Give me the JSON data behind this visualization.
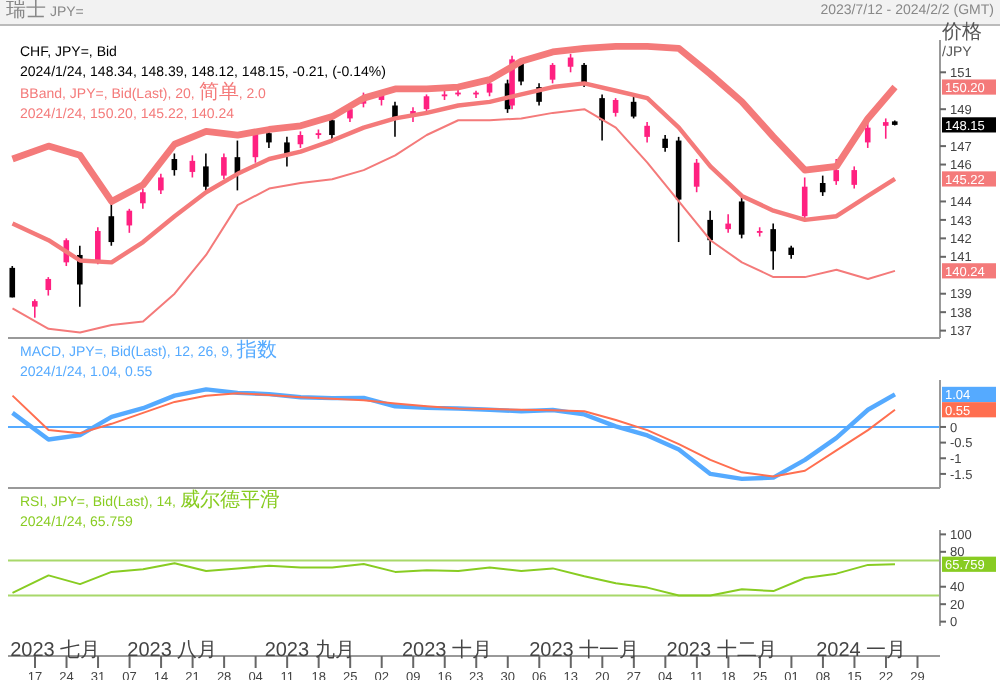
{
  "chart_data": [
    {
      "type": "candlestick",
      "title": "瑞士 JPY=",
      "subtitle": "2023/7/12 - 2024/2/2 (GMT)",
      "ylabel": "价格 /JPY",
      "x": [
        "2023-07-12",
        "2023-07-17",
        "2023-07-20",
        "2023-07-24",
        "2023-07-27",
        "2023-07-31",
        "2023-08-03",
        "2023-08-07",
        "2023-08-10",
        "2023-08-14",
        "2023-08-17",
        "2023-08-21",
        "2023-08-24",
        "2023-08-28",
        "2023-08-31",
        "2023-09-04",
        "2023-09-07",
        "2023-09-11",
        "2023-09-14",
        "2023-09-18",
        "2023-09-21",
        "2023-09-25",
        "2023-09-28",
        "2023-10-02",
        "2023-10-05",
        "2023-10-09",
        "2023-10-12",
        "2023-10-16",
        "2023-10-19",
        "2023-10-23",
        "2023-10-26",
        "2023-10-30",
        "2023-10-31",
        "2023-11-02",
        "2023-11-06",
        "2023-11-09",
        "2023-11-13",
        "2023-11-16",
        "2023-11-20",
        "2023-11-23",
        "2023-11-27",
        "2023-11-30",
        "2023-12-04",
        "2023-12-07",
        "2023-12-11",
        "2023-12-14",
        "2023-12-18",
        "2023-12-21",
        "2023-12-25",
        "2023-12-28",
        "2024-01-01",
        "2024-01-04",
        "2024-01-08",
        "2024-01-11",
        "2024-01-15",
        "2024-01-18",
        "2024-01-22",
        "2024-01-24"
      ],
      "ohlc": [
        [
          140.4,
          140.5,
          138.8,
          138.8
        ],
        [
          138.3,
          138.7,
          137.7,
          138.6
        ],
        [
          139.2,
          139.9,
          138.9,
          139.8
        ],
        [
          140.7,
          142.0,
          140.5,
          141.9
        ],
        [
          141.1,
          141.6,
          138.3,
          139.5
        ],
        [
          140.8,
          142.6,
          140.6,
          142.4
        ],
        [
          143.2,
          144.0,
          141.6,
          141.8
        ],
        [
          142.7,
          143.6,
          142.3,
          143.5
        ],
        [
          143.9,
          144.7,
          143.6,
          144.5
        ],
        [
          144.6,
          145.5,
          144.4,
          145.3
        ],
        [
          146.3,
          146.6,
          145.4,
          145.7
        ],
        [
          145.6,
          146.5,
          145.3,
          146.2
        ],
        [
          145.9,
          146.6,
          144.5,
          144.8
        ],
        [
          145.4,
          146.6,
          145.2,
          146.4
        ],
        [
          146.4,
          147.3,
          144.6,
          145.5
        ],
        [
          146.4,
          147.9,
          146.1,
          147.7
        ],
        [
          147.7,
          147.8,
          146.9,
          147.2
        ],
        [
          147.2,
          147.5,
          145.9,
          146.5
        ],
        [
          147.1,
          147.8,
          146.9,
          147.6
        ],
        [
          147.6,
          147.9,
          147.4,
          147.7
        ],
        [
          148.4,
          148.6,
          147.3,
          147.6
        ],
        [
          148.5,
          149.2,
          148.3,
          149.0
        ],
        [
          149.3,
          149.9,
          149.1,
          149.6
        ],
        [
          149.5,
          150.0,
          149.2,
          149.8
        ],
        [
          149.2,
          149.4,
          147.5,
          148.5
        ],
        [
          148.6,
          149.1,
          148.3,
          148.9
        ],
        [
          149.0,
          149.8,
          148.8,
          149.7
        ],
        [
          149.7,
          150.0,
          149.5,
          149.8
        ],
        [
          149.8,
          150.1,
          149.7,
          149.9
        ],
        [
          149.8,
          150.0,
          149.6,
          149.9
        ],
        [
          149.9,
          150.5,
          149.7,
          150.4
        ],
        [
          150.4,
          150.6,
          148.8,
          149.0
        ],
        [
          149.2,
          151.9,
          149.0,
          151.7
        ],
        [
          151.5,
          151.7,
          150.3,
          150.5
        ],
        [
          150.2,
          150.4,
          149.2,
          149.4
        ],
        [
          150.6,
          151.5,
          150.4,
          151.4
        ],
        [
          151.3,
          152.0,
          151.0,
          151.8
        ],
        [
          151.4,
          151.5,
          150.2,
          150.4
        ],
        [
          149.6,
          149.8,
          147.3,
          148.4
        ],
        [
          148.8,
          149.6,
          148.6,
          149.5
        ],
        [
          149.4,
          149.7,
          148.5,
          148.6
        ],
        [
          147.5,
          148.3,
          147.2,
          148.1
        ],
        [
          147.4,
          147.6,
          146.7,
          146.9
        ],
        [
          147.3,
          147.5,
          141.8,
          144.1
        ],
        [
          144.8,
          146.3,
          144.5,
          146.1
        ],
        [
          143.0,
          143.5,
          141.1,
          141.9
        ],
        [
          142.5,
          143.3,
          142.3,
          142.8
        ],
        [
          144.0,
          144.3,
          142.0,
          142.2
        ],
        [
          142.3,
          142.6,
          142.1,
          142.4
        ],
        [
          142.5,
          142.8,
          140.3,
          141.3
        ],
        [
          141.5,
          141.6,
          140.9,
          141.1
        ],
        [
          143.2,
          145.3,
          143.0,
          144.8
        ],
        [
          145.0,
          145.4,
          144.3,
          144.5
        ],
        [
          145.1,
          146.3,
          144.9,
          145.7
        ],
        [
          144.9,
          145.9,
          144.7,
          145.7
        ],
        [
          147.2,
          148.3,
          146.9,
          148.0
        ],
        [
          148.1,
          148.5,
          147.4,
          148.3
        ],
        [
          148.34,
          148.39,
          148.12,
          148.15
        ]
      ],
      "colors": [
        "#000000",
        "#ff2080",
        "#ff2080",
        "#ff2080",
        "#000000",
        "#ff2080",
        "#000000",
        "#ff2080",
        "#ff2080",
        "#ff2080",
        "#000000",
        "#ff2080",
        "#000000",
        "#ff2080",
        "#000000",
        "#ff2080",
        "#000000",
        "#000000",
        "#ff2080",
        "#ff2080",
        "#000000",
        "#ff2080",
        "#ff2080",
        "#ff2080",
        "#000000",
        "#ff2080",
        "#ff2080",
        "#ff2080",
        "#ff2080",
        "#ff2080",
        "#ff2080",
        "#000000",
        "#ff2080",
        "#000000",
        "#000000",
        "#ff2080",
        "#ff2080",
        "#000000",
        "#000000",
        "#ff2080",
        "#000000",
        "#ff2080",
        "#000000",
        "#000000",
        "#ff2080",
        "#000000",
        "#ff2080",
        "#000000",
        "#ff2080",
        "#000000",
        "#000000",
        "#ff2080",
        "#000000",
        "#ff2080",
        "#ff2080",
        "#ff2080",
        "#ff2080",
        "#000000"
      ],
      "series": [
        {
          "type": "line",
          "color": "#f47a7a",
          "x": [
            "2023-07-12",
            "2023-07-20",
            "2023-07-27",
            "2023-08-03",
            "2023-08-10",
            "2023-08-17",
            "2023-08-24",
            "2023-08-31",
            "2023-09-07",
            "2023-09-14",
            "2023-09-21",
            "2023-09-28",
            "2023-10-05",
            "2023-10-12",
            "2023-10-19",
            "2023-10-26",
            "2023-11-02",
            "2023-11-09",
            "2023-11-16",
            "2023-11-23",
            "2023-11-30",
            "2023-12-07",
            "2023-12-14",
            "2023-12-21",
            "2023-12-28",
            "2024-01-04",
            "2024-01-11",
            "2024-01-18",
            "2024-01-24"
          ],
          "values": [
            146.3,
            147.0,
            146.5,
            144.0,
            144.9,
            147.1,
            147.8,
            147.6,
            147.9,
            148.1,
            148.6,
            149.6,
            150.1,
            150.1,
            150.2,
            150.6,
            151.6,
            152.1,
            152.3,
            152.4,
            152.4,
            152.3,
            150.9,
            149.4,
            147.5,
            145.7,
            145.9,
            148.5,
            150.2
          ]
        },
        {
          "type": "line",
          "color": "#f47a7a",
          "x": [
            "2023-07-12",
            "2023-07-20",
            "2023-07-27",
            "2023-08-03",
            "2023-08-10",
            "2023-08-17",
            "2023-08-24",
            "2023-08-31",
            "2023-09-07",
            "2023-09-14",
            "2023-09-21",
            "2023-09-28",
            "2023-10-05",
            "2023-10-12",
            "2023-10-19",
            "2023-10-26",
            "2023-11-02",
            "2023-11-09",
            "2023-11-16",
            "2023-11-23",
            "2023-11-30",
            "2023-12-07",
            "2023-12-14",
            "2023-12-21",
            "2023-12-28",
            "2024-01-04",
            "2024-01-11",
            "2024-01-18",
            "2024-01-24"
          ],
          "values": [
            142.8,
            141.9,
            140.8,
            140.7,
            141.8,
            143.2,
            144.5,
            145.5,
            146.3,
            146.7,
            147.3,
            148.0,
            148.5,
            148.8,
            149.2,
            149.4,
            149.8,
            150.2,
            150.4,
            150.0,
            149.6,
            148.0,
            145.9,
            144.3,
            143.5,
            143.0,
            143.2,
            144.3,
            145.22
          ]
        },
        {
          "type": "line",
          "color": "#f47a7a",
          "x": [
            "2023-07-12",
            "2023-07-20",
            "2023-07-27",
            "2023-08-03",
            "2023-08-10",
            "2023-08-17",
            "2023-08-24",
            "2023-08-31",
            "2023-09-07",
            "2023-09-14",
            "2023-09-21",
            "2023-09-28",
            "2023-10-05",
            "2023-10-12",
            "2023-10-19",
            "2023-10-26",
            "2023-11-02",
            "2023-11-09",
            "2023-11-16",
            "2023-11-23",
            "2023-11-30",
            "2023-12-07",
            "2023-12-14",
            "2023-12-21",
            "2023-12-28",
            "2024-01-04",
            "2024-01-11",
            "2024-01-18",
            "2024-01-24"
          ],
          "values": [
            138.2,
            137.1,
            136.9,
            137.3,
            137.5,
            139.0,
            141.1,
            143.8,
            144.7,
            145.0,
            145.2,
            145.7,
            146.5,
            147.6,
            148.4,
            148.4,
            148.5,
            148.8,
            149.0,
            148.0,
            146.1,
            144.0,
            141.9,
            140.7,
            139.9,
            139.9,
            140.3,
            139.8,
            140.24
          ]
        }
      ],
      "xlim": [
        "2023-07-11",
        "2024-02-03"
      ],
      "ylim": [
        136.6,
        152.75
      ],
      "yticks": [
        137,
        138,
        139,
        141,
        142,
        143,
        144,
        146,
        147,
        149,
        151
      ],
      "tick_labels": "y",
      "annotations": [
        "CHF, JPY=, Bid",
        "2024/1/24, 148.34, 148.39, 148.12, 148.15, -0.21, (-0.14%)",
        "BBand, JPY=, Bid(Last), 20, 简单, 2.0",
        "2024/1/24, 150.20, 145.22, 140.24",
        "150.20",
        "148.15",
        "145.22",
        "140.24"
      ]
    },
    {
      "type": "line",
      "x": [
        "2023-07-12",
        "2023-07-20",
        "2023-07-27",
        "2023-08-03",
        "2023-08-10",
        "2023-08-17",
        "2023-08-24",
        "2023-08-31",
        "2023-09-07",
        "2023-09-14",
        "2023-09-21",
        "2023-09-28",
        "2023-10-05",
        "2023-10-12",
        "2023-10-19",
        "2023-10-26",
        "2023-11-02",
        "2023-11-09",
        "2023-11-16",
        "2023-11-23",
        "2023-11-30",
        "2023-12-07",
        "2023-12-14",
        "2023-12-21",
        "2023-12-28",
        "2024-01-04",
        "2024-01-11",
        "2024-01-18",
        "2024-01-24"
      ],
      "series": [
        {
          "color": "#55aaff",
          "values": [
            0.45,
            -0.4,
            -0.26,
            0.32,
            0.6,
            1.0,
            1.2,
            1.09,
            1.05,
            0.95,
            0.92,
            0.93,
            0.66,
            0.61,
            0.59,
            0.55,
            0.5,
            0.54,
            0.4,
            0.02,
            -0.27,
            -0.72,
            -1.5,
            -1.66,
            -1.62,
            -1.05,
            -0.35,
            0.55,
            1.04
          ]
        },
        {
          "color": "#ff6f50",
          "values": [
            1.0,
            -0.1,
            -0.2,
            0.1,
            0.45,
            0.8,
            1.0,
            1.08,
            1.02,
            0.95,
            0.9,
            0.85,
            0.75,
            0.66,
            0.59,
            0.57,
            0.55,
            0.53,
            0.5,
            0.22,
            -0.1,
            -0.55,
            -1.05,
            -1.45,
            -1.58,
            -1.4,
            -0.75,
            -0.1,
            0.55
          ]
        }
      ],
      "xlim": [
        "2023-07-11",
        "2024-02-03"
      ],
      "ylim": [
        -1.95,
        1.5
      ],
      "yticks": [
        -1.5,
        -1,
        -0.5,
        0
      ],
      "tick_labels": "y",
      "ref_lines": [
        {
          "axis": "y",
          "value": 0,
          "color": "#55aaff"
        }
      ],
      "annotations": [
        "MACD, JPY=, Bid(Last), 12, 26, 9, 指数",
        "2024/1/24, 1.04, 0.55",
        "1.04",
        "0.55"
      ]
    },
    {
      "type": "line",
      "x": [
        "2023-07-12",
        "2023-07-20",
        "2023-07-27",
        "2023-08-03",
        "2023-08-10",
        "2023-08-17",
        "2023-08-24",
        "2023-08-31",
        "2023-09-07",
        "2023-09-14",
        "2023-09-21",
        "2023-09-28",
        "2023-10-05",
        "2023-10-12",
        "2023-10-19",
        "2023-10-26",
        "2023-11-02",
        "2023-11-09",
        "2023-11-16",
        "2023-11-23",
        "2023-11-30",
        "2023-12-07",
        "2023-12-14",
        "2023-12-21",
        "2023-12-28",
        "2024-01-04",
        "2024-01-11",
        "2024-01-18",
        "2024-01-24"
      ],
      "series": [
        {
          "color": "#88cc22",
          "values": [
            33,
            53,
            43,
            57,
            60,
            67,
            58,
            61,
            64,
            62,
            62,
            66,
            57,
            59,
            58,
            62,
            58,
            61,
            52,
            44,
            39,
            30,
            30,
            37,
            35,
            50,
            55,
            65,
            65.759
          ]
        }
      ],
      "xlim": [
        "2023-07-11",
        "2024-02-03"
      ],
      "ylim": [
        -5,
        105
      ],
      "yticks": [
        0,
        20,
        40,
        80,
        100
      ],
      "xticks": [
        {
          "value": "2023-07-17",
          "label": "17"
        },
        {
          "value": "2023-07-24",
          "label": "24"
        },
        {
          "value": "2023-07-31",
          "label": "31"
        },
        {
          "value": "2023-08-07",
          "label": "07"
        },
        {
          "value": "2023-08-14",
          "label": "14"
        },
        {
          "value": "2023-08-21",
          "label": "21"
        },
        {
          "value": "2023-08-28",
          "label": "28"
        },
        {
          "value": "2023-09-04",
          "label": "04"
        },
        {
          "value": "2023-09-11",
          "label": "11"
        },
        {
          "value": "2023-09-18",
          "label": "18"
        },
        {
          "value": "2023-09-25",
          "label": "25"
        },
        {
          "value": "2023-10-02",
          "label": "02"
        },
        {
          "value": "2023-10-09",
          "label": "09"
        },
        {
          "value": "2023-10-16",
          "label": "16"
        },
        {
          "value": "2023-10-23",
          "label": "23"
        },
        {
          "value": "2023-10-30",
          "label": "30"
        },
        {
          "value": "2023-11-06",
          "label": "06"
        },
        {
          "value": "2023-11-13",
          "label": "13"
        },
        {
          "value": "2023-11-20",
          "label": "20"
        },
        {
          "value": "2023-11-27",
          "label": "27"
        },
        {
          "value": "2023-12-04",
          "label": "04"
        },
        {
          "value": "2023-12-11",
          "label": "11"
        },
        {
          "value": "2023-12-18",
          "label": "18"
        },
        {
          "value": "2023-12-25",
          "label": "25"
        },
        {
          "value": "2024-01-01",
          "label": "01"
        },
        {
          "value": "2024-01-08",
          "label": "08"
        },
        {
          "value": "2024-01-15",
          "label": "15"
        },
        {
          "value": "2024-01-22",
          "label": "22"
        },
        {
          "value": "2024-01-29",
          "label": "29"
        }
      ],
      "ref_lines": [
        {
          "axis": "y",
          "value": 70,
          "color": "#a8d86a"
        },
        {
          "axis": "y",
          "value": 30,
          "color": "#a8d86a"
        }
      ],
      "annotations": [
        "RSI, JPY=, Bid(Last), 14, 威尔德平滑",
        "2024/1/24, 65.759",
        "65.759",
        "2023 七月",
        "2023 八月",
        "2023 九月",
        "2023 十月",
        "2023 十一月",
        "2023 十二月",
        "2024 一月"
      ]
    }
  ]
}
